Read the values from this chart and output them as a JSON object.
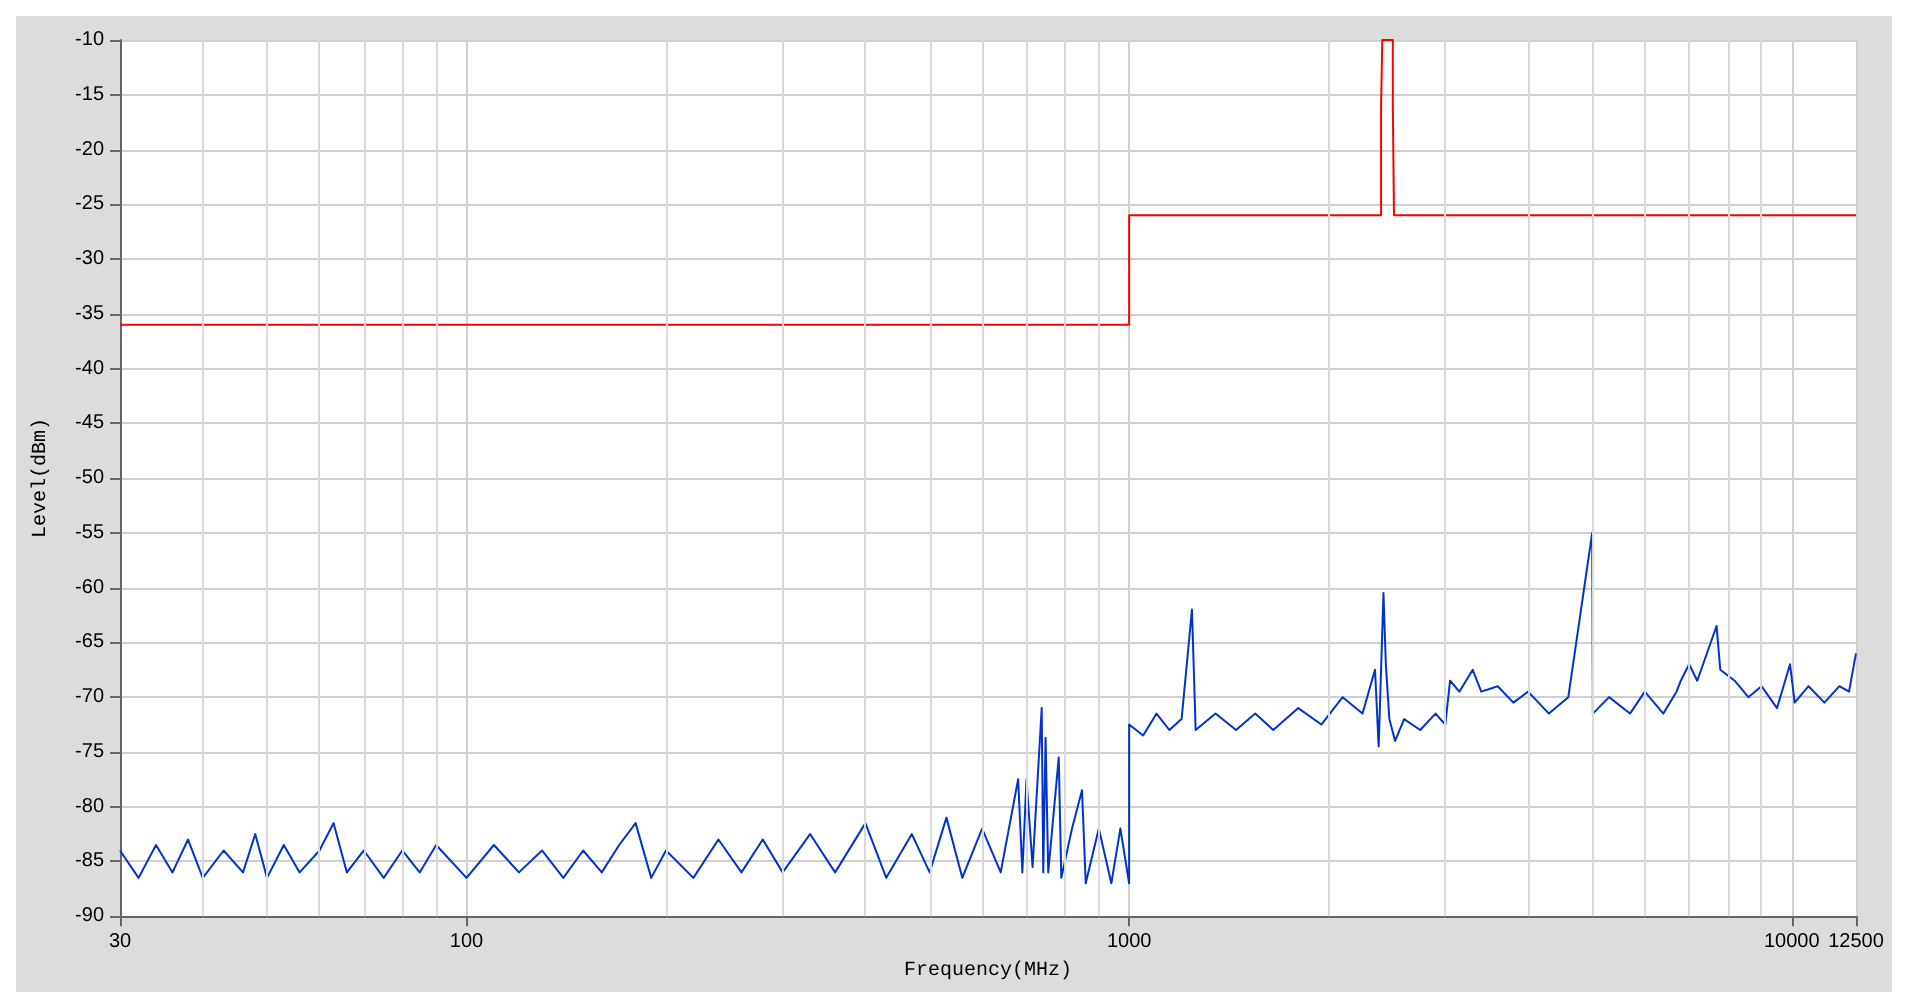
{
  "chart_data": {
    "type": "line",
    "xlabel": "Frequency(MHz)",
    "ylabel": "Level(dBm)",
    "log": "x",
    "grid": true,
    "marker": "none",
    "line_style": "solid",
    "xlim": [
      30,
      12500
    ],
    "ylim": [
      -90,
      -10
    ],
    "xticks": [
      30,
      {
        "value": 40,
        "label": null
      },
      {
        "value": 50,
        "label": null
      },
      {
        "value": 60,
        "label": null
      },
      {
        "value": 70,
        "label": null
      },
      {
        "value": 80,
        "label": null
      },
      {
        "value": 90,
        "label": null
      },
      100,
      {
        "value": 200,
        "label": null
      },
      {
        "value": 300,
        "label": null
      },
      {
        "value": 400,
        "label": null
      },
      {
        "value": 500,
        "label": null
      },
      {
        "value": 600,
        "label": null
      },
      {
        "value": 700,
        "label": null
      },
      {
        "value": 800,
        "label": null
      },
      {
        "value": 900,
        "label": null
      },
      1000,
      {
        "value": 2000,
        "label": null
      },
      {
        "value": 3000,
        "label": null
      },
      {
        "value": 4000,
        "label": null
      },
      {
        "value": 5000,
        "label": null
      },
      {
        "value": 6000,
        "label": null
      },
      {
        "value": 7000,
        "label": null
      },
      {
        "value": 8000,
        "label": null
      },
      {
        "value": 9000,
        "label": null
      },
      10000,
      12500
    ],
    "yticks": [
      -90,
      -85,
      -80,
      -75,
      -70,
      -65,
      -60,
      -55,
      -50,
      -45,
      -40,
      -35,
      -30,
      -25,
      -20,
      -15,
      -10
    ],
    "series": [
      {
        "color": "#0033cc",
        "x": [
          30,
          32,
          34,
          36,
          38,
          40,
          43,
          46,
          48,
          50,
          53,
          56,
          60,
          63,
          66,
          70,
          75,
          80,
          85,
          90,
          100,
          110,
          120,
          130,
          140,
          150,
          160,
          170,
          180,
          190,
          200,
          220,
          240,
          260,
          280,
          300,
          330,
          360,
          400,
          430,
          470,
          500,
          530,
          560,
          600,
          640,
          680,
          690,
          700,
          715,
          738,
          742,
          748,
          755,
          783,
          790,
          820,
          849,
          860,
          900,
          940,
          970,
          1000,
          1000,
          1050,
          1100,
          1150,
          1200,
          1244,
          1260,
          1350,
          1450,
          1550,
          1650,
          1800,
          1950,
          2100,
          2250,
          2350,
          2380,
          2420,
          2440,
          2470,
          2520,
          2600,
          2750,
          2900,
          3000,
          3050,
          3150,
          3300,
          3400,
          3600,
          3800,
          4000,
          4300,
          4600,
          4998,
          5010,
          5300,
          5700,
          6000,
          6400,
          6700,
          6800,
          7000,
          7200,
          7700,
          7800,
          8200,
          8600,
          9000,
          9500,
          9940,
          10100,
          10600,
          11200,
          11800,
          12200,
          12500
        ],
        "values": [
          -84,
          -86.5,
          -83.5,
          -86,
          -83,
          -86.5,
          -84,
          -86,
          -82.5,
          -86.5,
          -83.5,
          -86,
          -84,
          -81.5,
          -86,
          -84,
          -86.5,
          -84,
          -86,
          -83.5,
          -86.5,
          -83.5,
          -86,
          -84,
          -86.5,
          -84,
          -86,
          -83.5,
          -81.5,
          -86.5,
          -84,
          -86.5,
          -83,
          -86,
          -83,
          -86,
          -82.5,
          -86,
          -81.5,
          -86.5,
          -82.5,
          -86,
          -81,
          -86.5,
          -82,
          -86,
          -77.5,
          -86,
          -77.5,
          -85.5,
          -71,
          -86,
          -73.7,
          -86,
          -75.5,
          -86.5,
          -82,
          -78.5,
          -87,
          -82,
          -87,
          -82,
          -87,
          -72.5,
          -73.5,
          -71.5,
          -73,
          -72,
          -62,
          -73,
          -71.5,
          -73,
          -71.5,
          -73,
          -71,
          -72.5,
          -70,
          -71.5,
          -67.5,
          -74.5,
          -60.5,
          -67,
          -72,
          -74,
          -72,
          -73,
          -71.5,
          -72.5,
          -68.5,
          -69.5,
          -67.5,
          -69.5,
          -69,
          -70.5,
          -69.5,
          -71.5,
          -70,
          -55,
          -71.5,
          -70,
          -71.5,
          -69.5,
          -71.5,
          -69.5,
          -68.5,
          -67,
          -68.5,
          -63.5,
          -67.5,
          -68.5,
          -70,
          -69,
          -71,
          -67,
          -70.5,
          -69,
          -70.5,
          -69,
          -69.5,
          -66
        ]
      },
      {
        "color": "#ff0000",
        "x": [
          30,
          1000,
          1000,
          2400,
          2400,
          2410,
          2410,
          2500,
          2500,
          2510,
          2510,
          12500
        ],
        "values": [
          -36,
          -36,
          -26,
          -26,
          -16,
          -16,
          -10,
          -10,
          -16,
          -16,
          -26,
          -26
        ]
      }
    ]
  }
}
